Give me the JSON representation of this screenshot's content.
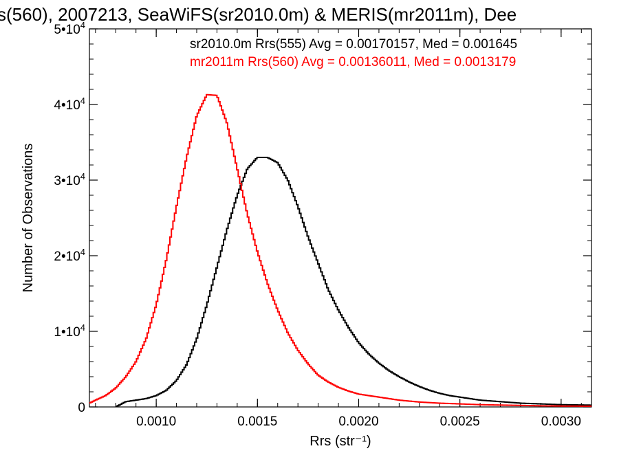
{
  "chart_data": {
    "type": "line",
    "title": "s(560), 2007213, SeaWiFS(sr2010.0m) & MERIS(mr2011m), Dee",
    "xlabel": "Rrs (str⁻¹)",
    "ylabel": "Number of Observations",
    "xlim": [
      0.00067,
      0.00315
    ],
    "ylim": [
      0,
      50000
    ],
    "xticks": [
      {
        "value": 0.001,
        "label": "0.0010"
      },
      {
        "value": 0.0015,
        "label": "0.0015"
      },
      {
        "value": 0.002,
        "label": "0.0020"
      },
      {
        "value": 0.0025,
        "label": "0.0025"
      },
      {
        "value": 0.003,
        "label": "0.0030"
      }
    ],
    "yticks": [
      {
        "value": 0,
        "base": "0",
        "exp": ""
      },
      {
        "value": 10000,
        "base": "1•10",
        "exp": "4"
      },
      {
        "value": 20000,
        "base": "2•10",
        "exp": "4"
      },
      {
        "value": 30000,
        "base": "3•10",
        "exp": "4"
      },
      {
        "value": 40000,
        "base": "4•10",
        "exp": "4"
      },
      {
        "value": 50000,
        "base": "5•10",
        "exp": "4"
      }
    ],
    "legend_position": "top-right",
    "series": [
      {
        "name": "sr2010.0m Rrs(555) Avg = 0.00170157, Med = 0.001645",
        "color": "#000000",
        "points": [
          [
            0.0008,
            0
          ],
          [
            0.00085,
            700
          ],
          [
            0.0009,
            900
          ],
          [
            0.00095,
            1100
          ],
          [
            0.001,
            1500
          ],
          [
            0.00105,
            2200
          ],
          [
            0.0011,
            3500
          ],
          [
            0.00115,
            5600
          ],
          [
            0.0012,
            9000
          ],
          [
            0.00125,
            13500
          ],
          [
            0.0013,
            18500
          ],
          [
            0.00135,
            23500
          ],
          [
            0.0014,
            28000
          ],
          [
            0.00145,
            31500
          ],
          [
            0.0015,
            33000
          ],
          [
            0.00155,
            33000
          ],
          [
            0.0016,
            32300
          ],
          [
            0.00165,
            30000
          ],
          [
            0.0017,
            26500
          ],
          [
            0.00175,
            22500
          ],
          [
            0.0018,
            19000
          ],
          [
            0.00185,
            15500
          ],
          [
            0.0019,
            12800
          ],
          [
            0.00195,
            10500
          ],
          [
            0.002,
            8500
          ],
          [
            0.00205,
            7000
          ],
          [
            0.0021,
            5800
          ],
          [
            0.00215,
            4800
          ],
          [
            0.0022,
            4000
          ],
          [
            0.00225,
            3300
          ],
          [
            0.0023,
            2700
          ],
          [
            0.00235,
            2200
          ],
          [
            0.0024,
            1800
          ],
          [
            0.00245,
            1500
          ],
          [
            0.0025,
            1300
          ],
          [
            0.00255,
            1100
          ],
          [
            0.0026,
            900
          ],
          [
            0.00265,
            800
          ],
          [
            0.0027,
            700
          ],
          [
            0.00275,
            600
          ],
          [
            0.0028,
            500
          ],
          [
            0.00285,
            450
          ],
          [
            0.0029,
            400
          ],
          [
            0.00295,
            350
          ],
          [
            0.003,
            300
          ],
          [
            0.00305,
            280
          ],
          [
            0.0031,
            260
          ],
          [
            0.00315,
            240
          ]
        ]
      },
      {
        "name": "mr2011m Rrs(560) Avg = 0.00136011, Med = 0.0013179",
        "color": "#ff0000",
        "points": [
          [
            0.00067,
            500
          ],
          [
            0.0007,
            900
          ],
          [
            0.00075,
            1500
          ],
          [
            0.0008,
            2500
          ],
          [
            0.00085,
            4000
          ],
          [
            0.0009,
            6000
          ],
          [
            0.00095,
            9000
          ],
          [
            0.001,
            13500
          ],
          [
            0.00105,
            19500
          ],
          [
            0.0011,
            26500
          ],
          [
            0.00115,
            33000
          ],
          [
            0.0012,
            38500
          ],
          [
            0.00125,
            41300
          ],
          [
            0.0013,
            41200
          ],
          [
            0.00135,
            37500
          ],
          [
            0.0014,
            31500
          ],
          [
            0.00145,
            25500
          ],
          [
            0.0015,
            20500
          ],
          [
            0.00155,
            16300
          ],
          [
            0.0016,
            12800
          ],
          [
            0.00165,
            9800
          ],
          [
            0.0017,
            7500
          ],
          [
            0.00175,
            5700
          ],
          [
            0.0018,
            4200
          ],
          [
            0.00185,
            3300
          ],
          [
            0.0019,
            2600
          ],
          [
            0.00195,
            2100
          ],
          [
            0.002,
            1700
          ],
          [
            0.0021,
            1300
          ],
          [
            0.0022,
            900
          ],
          [
            0.0023,
            650
          ],
          [
            0.0024,
            500
          ],
          [
            0.0025,
            400
          ],
          [
            0.0026,
            300
          ],
          [
            0.0027,
            250
          ],
          [
            0.0028,
            200
          ],
          [
            0.0029,
            150
          ],
          [
            0.003,
            120
          ],
          [
            0.00315,
            100
          ]
        ]
      }
    ]
  }
}
